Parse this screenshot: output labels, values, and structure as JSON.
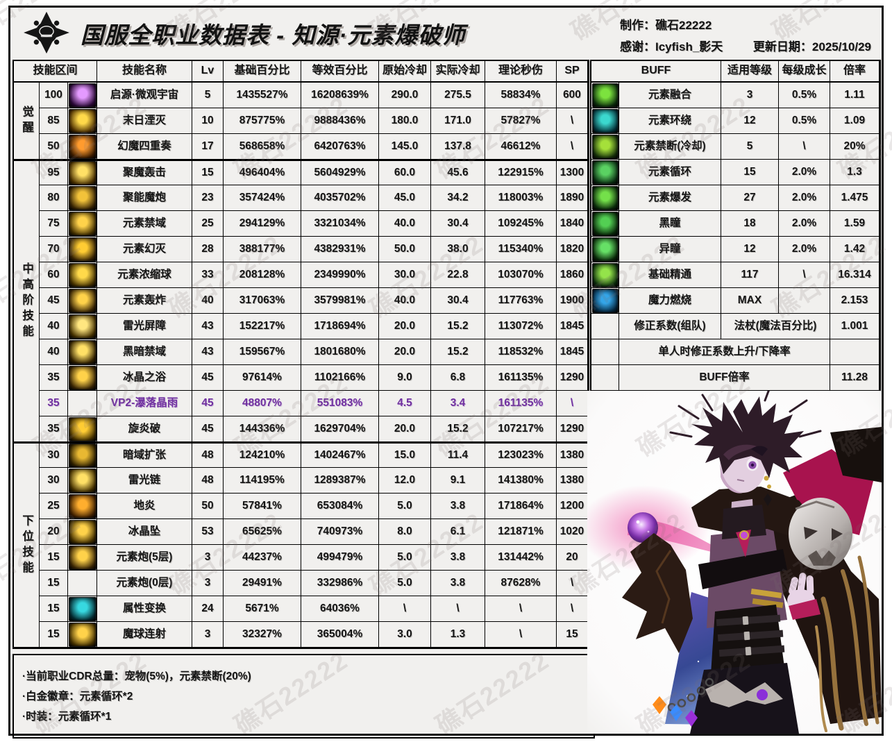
{
  "header": {
    "title": "国服全职业数据表 - 知源·元素爆破师",
    "maker": "制作：礁石22222",
    "thanks": "感谢：Icyfish_影天",
    "updated": "更新日期：2025/10/29"
  },
  "watermark": "礁石22222",
  "colors": {
    "vp2_accent": "#7030a0"
  },
  "skill_table": {
    "headers": {
      "interval": "技能区间",
      "name": "技能名称",
      "lv": "Lv",
      "base": "基础百分比",
      "equiv": "等效百分比",
      "cd": "原始冷却",
      "real_cd": "实际冷却",
      "dps": "理论秒伤",
      "sp": "SP"
    },
    "groups": [
      {
        "label": "觉醒",
        "start": 0,
        "count": 3
      },
      {
        "label": "中高阶技能",
        "start": 3,
        "count": 11
      },
      {
        "label": "下位技能",
        "start": 14,
        "count": 8
      }
    ],
    "rows": [
      {
        "interval": "100",
        "icon": [
          "#2a0836",
          "#e49aff"
        ],
        "name": "启源·微观宇宙",
        "lv": "5",
        "base": "1435527%",
        "equiv": "16208639%",
        "cd": "290.0",
        "real_cd": "275.5",
        "dps": "58834%",
        "sp": "600",
        "purple": false
      },
      {
        "interval": "85",
        "icon": [
          "#4a2c00",
          "#ffd94a"
        ],
        "name": "末日湮灭",
        "lv": "10",
        "base": "875775%",
        "equiv": "9888436%",
        "cd": "180.0",
        "real_cd": "171.0",
        "dps": "57827%",
        "sp": "\\",
        "purple": false
      },
      {
        "interval": "50",
        "icon": [
          "#3c1c00",
          "#ff9b2e"
        ],
        "name": "幻魔四重奏",
        "lv": "17",
        "base": "568658%",
        "equiv": "6420763%",
        "cd": "145.0",
        "real_cd": "137.8",
        "dps": "46612%",
        "sp": "\\",
        "purple": false
      },
      {
        "interval": "95",
        "icon": [
          "#4a3000",
          "#ffe066"
        ],
        "name": "聚魔轰击",
        "lv": "15",
        "base": "496404%",
        "equiv": "5604929%",
        "cd": "60.0",
        "real_cd": "45.6",
        "dps": "122915%",
        "sp": "1300",
        "purple": false
      },
      {
        "interval": "80",
        "icon": [
          "#3a2605",
          "#f2c23a"
        ],
        "name": "聚能魔炮",
        "lv": "23",
        "base": "357424%",
        "equiv": "4035702%",
        "cd": "45.0",
        "real_cd": "34.2",
        "dps": "118003%",
        "sp": "1890",
        "purple": false
      },
      {
        "interval": "75",
        "icon": [
          "#443000",
          "#ffd24a"
        ],
        "name": "元素禁域",
        "lv": "25",
        "base": "294129%",
        "equiv": "3321034%",
        "cd": "40.0",
        "real_cd": "30.4",
        "dps": "109245%",
        "sp": "1840",
        "purple": false
      },
      {
        "interval": "70",
        "icon": [
          "#3a2605",
          "#ffcc33"
        ],
        "name": "元素幻灭",
        "lv": "28",
        "base": "388177%",
        "equiv": "4382931%",
        "cd": "50.0",
        "real_cd": "38.0",
        "dps": "115340%",
        "sp": "1820",
        "purple": false
      },
      {
        "interval": "60",
        "icon": [
          "#443000",
          "#ffd94a"
        ],
        "name": "元素浓缩球",
        "lv": "33",
        "base": "208128%",
        "equiv": "2349990%",
        "cd": "30.0",
        "real_cd": "22.8",
        "dps": "103070%",
        "sp": "1860",
        "purple": false
      },
      {
        "interval": "45",
        "icon": [
          "#3a2605",
          "#ffd24a"
        ],
        "name": "元素轰炸",
        "lv": "40",
        "base": "317063%",
        "equiv": "3579981%",
        "cd": "40.0",
        "real_cd": "30.4",
        "dps": "117763%",
        "sp": "1900",
        "purple": false
      },
      {
        "interval": "40",
        "icon": [
          "#443000",
          "#ffe680"
        ],
        "name": "雷光屏障",
        "lv": "43",
        "base": "152217%",
        "equiv": "1718694%",
        "cd": "20.0",
        "real_cd": "15.2",
        "dps": "113072%",
        "sp": "1845",
        "purple": false
      },
      {
        "interval": "40",
        "icon": [
          "#332200",
          "#ffe066"
        ],
        "name": "黑暗禁域",
        "lv": "43",
        "base": "159567%",
        "equiv": "1801680%",
        "cd": "20.0",
        "real_cd": "15.2",
        "dps": "118532%",
        "sp": "1845",
        "purple": false
      },
      {
        "interval": "35",
        "icon": [
          "#3a2605",
          "#ffd24a"
        ],
        "name": "冰晶之浴",
        "lv": "45",
        "base": "97614%",
        "equiv": "1102166%",
        "cd": "9.0",
        "real_cd": "6.8",
        "dps": "161135%",
        "sp": "1290",
        "purple": false
      },
      {
        "interval": "35",
        "icon": null,
        "name": "VP2-瀑落晶雨",
        "lv": "45",
        "base": "48807%",
        "equiv": "551083%",
        "cd": "4.5",
        "real_cd": "3.4",
        "dps": "161135%",
        "sp": "\\",
        "purple": true
      },
      {
        "interval": "35",
        "icon": [
          "#443000",
          "#ffcc33"
        ],
        "name": "旋炎破",
        "lv": "45",
        "base": "144336%",
        "equiv": "1629704%",
        "cd": "20.0",
        "real_cd": "15.2",
        "dps": "107217%",
        "sp": "1290",
        "purple": false
      },
      {
        "interval": "30",
        "icon": [
          "#2e2000",
          "#e8b832"
        ],
        "name": "暗域扩张",
        "lv": "48",
        "base": "124210%",
        "equiv": "1402467%",
        "cd": "15.0",
        "real_cd": "11.4",
        "dps": "123023%",
        "sp": "1380",
        "purple": false
      },
      {
        "interval": "30",
        "icon": [
          "#443000",
          "#ffe066"
        ],
        "name": "雷光链",
        "lv": "48",
        "base": "114195%",
        "equiv": "1289387%",
        "cd": "12.0",
        "real_cd": "9.1",
        "dps": "141380%",
        "sp": "1380",
        "purple": false
      },
      {
        "interval": "25",
        "icon": [
          "#402000",
          "#ffae2e"
        ],
        "name": "地炎",
        "lv": "50",
        "base": "57841%",
        "equiv": "653084%",
        "cd": "5.0",
        "real_cd": "3.8",
        "dps": "171864%",
        "sp": "1200",
        "purple": false
      },
      {
        "interval": "20",
        "icon": [
          "#443000",
          "#ffd24a"
        ],
        "name": "冰晶坠",
        "lv": "53",
        "base": "65625%",
        "equiv": "740973%",
        "cd": "8.0",
        "real_cd": "6.1",
        "dps": "121871%",
        "sp": "1020",
        "purple": false
      },
      {
        "interval": "15",
        "icon": [
          "#3a2605",
          "#ffd24a"
        ],
        "name": "元素炮(5层)",
        "lv": "3",
        "base": "44237%",
        "equiv": "499479%",
        "cd": "5.0",
        "real_cd": "3.8",
        "dps": "131442%",
        "sp": "20",
        "purple": false
      },
      {
        "interval": "15",
        "icon": null,
        "name": "元素炮(0层)",
        "lv": "3",
        "base": "29491%",
        "equiv": "332986%",
        "cd": "5.0",
        "real_cd": "3.8",
        "dps": "87628%",
        "sp": "\\",
        "purple": false
      },
      {
        "interval": "15",
        "icon": [
          "#042a30",
          "#37d8e0"
        ],
        "name": "属性变换",
        "lv": "24",
        "base": "5671%",
        "equiv": "64036%",
        "cd": "\\",
        "real_cd": "\\",
        "dps": "\\",
        "sp": "\\",
        "purple": false
      },
      {
        "interval": "15",
        "icon": [
          "#443000",
          "#ffd24a"
        ],
        "name": "魔球连射",
        "lv": "3",
        "base": "32327%",
        "equiv": "365004%",
        "cd": "3.0",
        "real_cd": "1.3",
        "dps": "\\",
        "sp": "15",
        "purple": false
      }
    ]
  },
  "buff_table": {
    "headers": {
      "buff": "BUFF",
      "level": "适用等级",
      "growth": "每级成长",
      "rate": "倍率"
    },
    "rows": [
      {
        "type": "normal",
        "icon": [
          "#0c2e0c",
          "#7ce23e"
        ],
        "name": "元素融合",
        "level": "3",
        "growth": "0.5%",
        "rate": "1.11"
      },
      {
        "type": "normal",
        "icon": [
          "#05333a",
          "#3bd8cf"
        ],
        "name": "元素环绕",
        "level": "12",
        "growth": "0.5%",
        "rate": "1.09"
      },
      {
        "type": "normal",
        "icon": [
          "#16300a",
          "#a5e03a"
        ],
        "name": "元素禁断(冷却)",
        "level": "5",
        "growth": "\\",
        "rate": "20%"
      },
      {
        "type": "normal",
        "icon": [
          "#0a2e12",
          "#5ad162"
        ],
        "name": "元素循环",
        "level": "15",
        "growth": "2.0%",
        "rate": "1.3"
      },
      {
        "type": "normal",
        "icon": [
          "#0c2e0c",
          "#74e04a"
        ],
        "name": "元素爆发",
        "level": "27",
        "growth": "2.0%",
        "rate": "1.475"
      },
      {
        "type": "normal",
        "icon": [
          "#0a2a0a",
          "#53cf53"
        ],
        "name": "黑瞳",
        "level": "18",
        "growth": "2.0%",
        "rate": "1.59"
      },
      {
        "type": "normal",
        "icon": [
          "#0a2a0a",
          "#66e066"
        ],
        "name": "异瞳",
        "level": "12",
        "growth": "2.0%",
        "rate": "1.42"
      },
      {
        "type": "normal",
        "icon": [
          "#0c2e0c",
          "#94e34a"
        ],
        "name": "基础精通",
        "level": "117",
        "growth": "\\",
        "rate": "16.314"
      },
      {
        "type": "normal",
        "icon": [
          "#05273f",
          "#34a5e8"
        ],
        "name": "魔力燃烧",
        "level": "MAX",
        "growth": "",
        "rate": "2.153"
      },
      {
        "type": "staff",
        "name": "修正系数(组队)",
        "merged": "法杖(魔法百分比)",
        "rate": "1.001"
      },
      {
        "type": "span",
        "name": "单人时修正系数上升/下降率",
        "rate": ""
      },
      {
        "type": "span",
        "name": "BUFF倍率",
        "rate": "11.28"
      }
    ]
  },
  "notes": [
    "·当前职业CDR总量：宠物(5%)，元素禁断(20%)",
    "·白金徽章：元素循环*2",
    "·时装：元素循环*1"
  ]
}
